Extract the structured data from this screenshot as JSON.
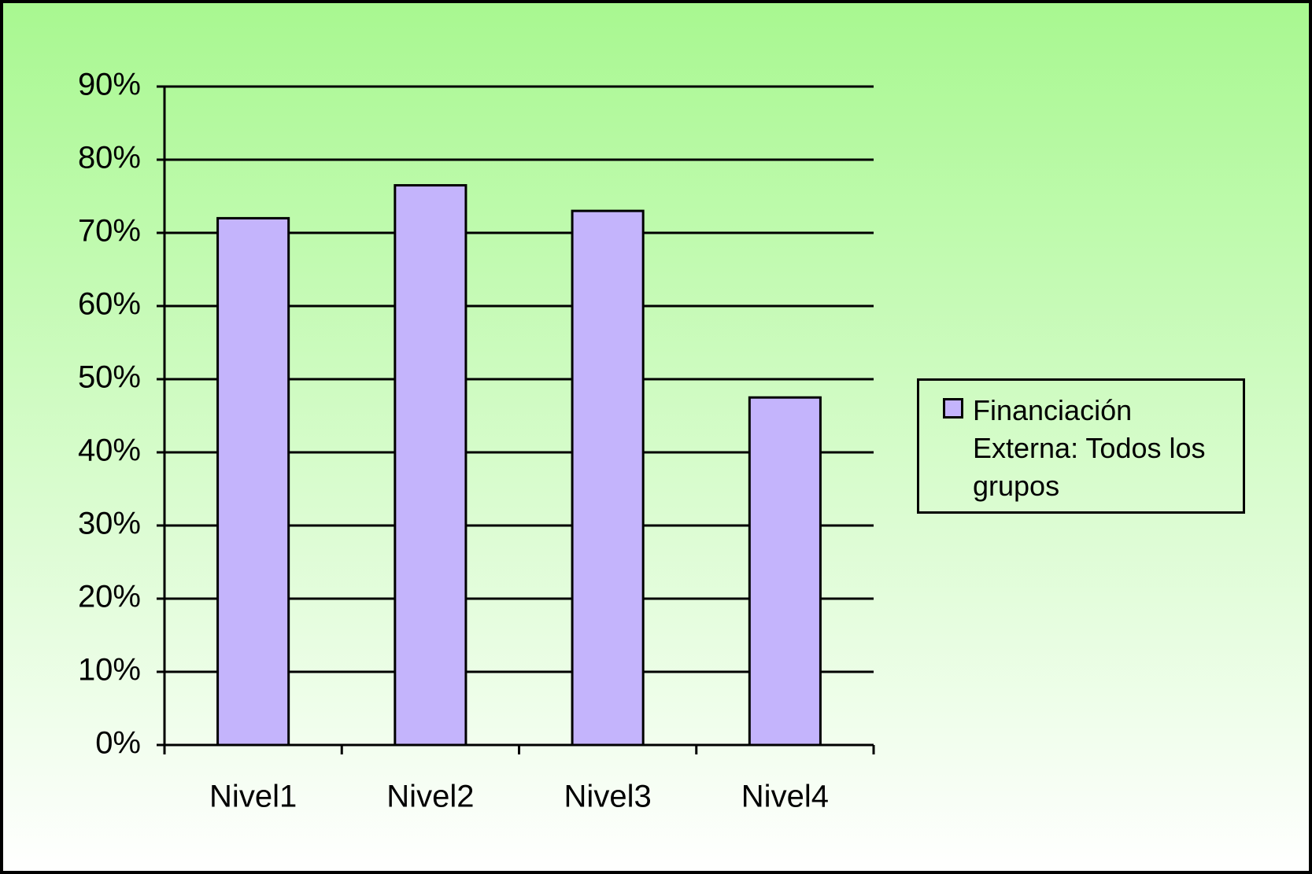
{
  "chart_data": {
    "type": "bar",
    "categories": [
      "Nivel1",
      "Nivel2",
      "Nivel3",
      "Nivel4"
    ],
    "series": [
      {
        "name": "Financiación Externa: Todos los grupos",
        "color": "#c4b4fc",
        "values": [
          72,
          76.5,
          73,
          47.5
        ]
      }
    ],
    "ylim": [
      0,
      90
    ],
    "yticks": [
      {
        "value": 0,
        "label": "0%"
      },
      {
        "value": 10,
        "label": "10%"
      },
      {
        "value": 20,
        "label": "20%"
      },
      {
        "value": 30,
        "label": "30%"
      },
      {
        "value": 40,
        "label": "40%"
      },
      {
        "value": 50,
        "label": "50%"
      },
      {
        "value": 60,
        "label": "60%"
      },
      {
        "value": 70,
        "label": "70%"
      },
      {
        "value": 80,
        "label": "80%"
      },
      {
        "value": 90,
        "label": "90%"
      }
    ],
    "grid": true,
    "legend": "right"
  }
}
